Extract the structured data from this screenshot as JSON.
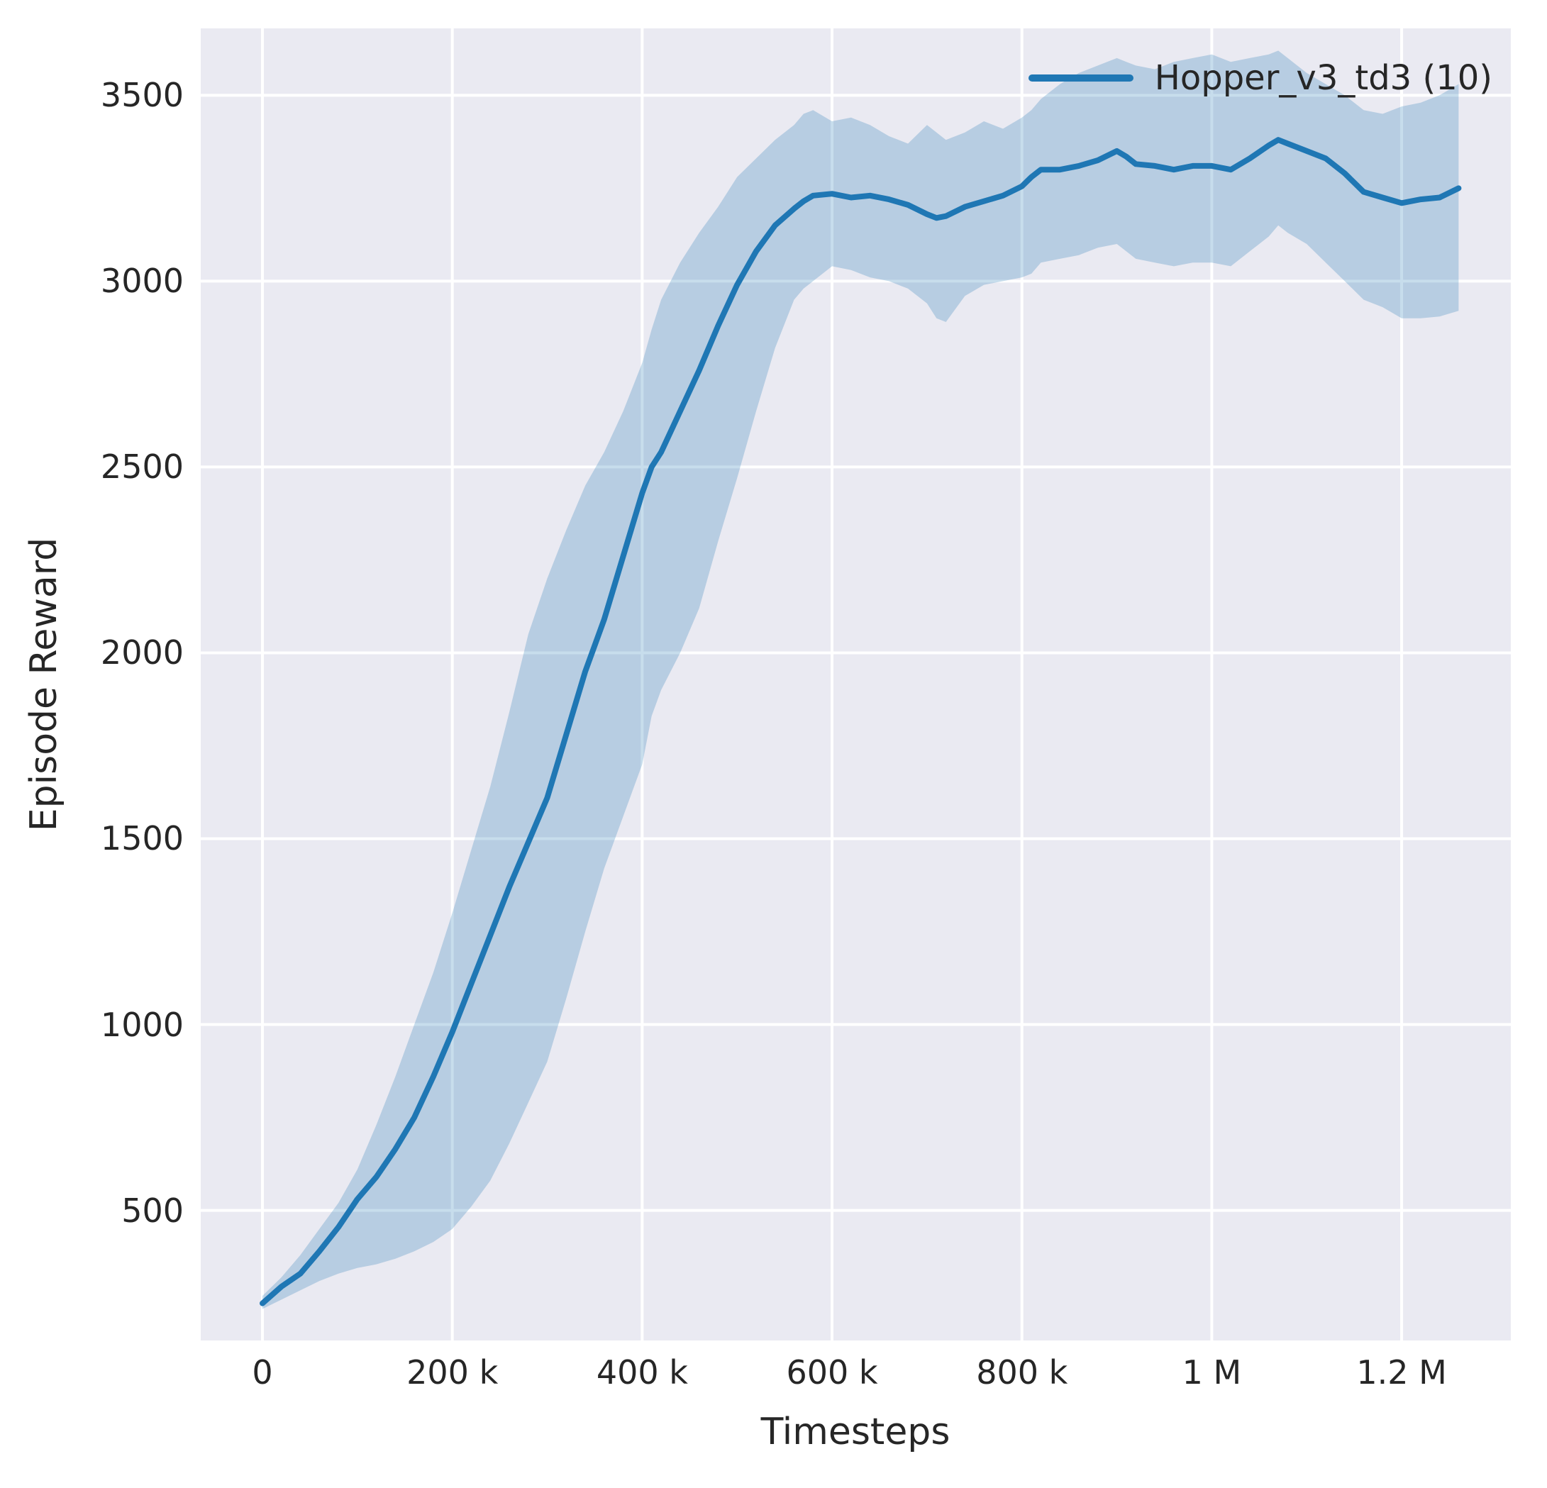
{
  "chart_data": {
    "type": "line",
    "title": "",
    "xlabel": "Timesteps",
    "ylabel": "Episode Reward",
    "grid": true,
    "legend": {
      "position": "upper right",
      "entries": [
        "Hopper_v3_td3 (10)"
      ]
    },
    "xlim": [
      -65000,
      1315000
    ],
    "ylim": [
      150,
      3680
    ],
    "xticks": {
      "values": [
        0,
        200000,
        400000,
        600000,
        800000,
        1000000,
        1200000
      ],
      "labels": [
        "0",
        "200 k",
        "400 k",
        "600 k",
        "800 k",
        "1 M",
        "1.2 M"
      ]
    },
    "yticks": {
      "values": [
        500,
        1000,
        1500,
        2000,
        2500,
        3000,
        3500
      ],
      "labels": [
        "500",
        "1000",
        "1500",
        "2000",
        "2500",
        "3000",
        "3500"
      ]
    },
    "x": [
      0,
      20000,
      40000,
      60000,
      80000,
      100000,
      120000,
      140000,
      160000,
      180000,
      200000,
      220000,
      240000,
      260000,
      280000,
      300000,
      320000,
      340000,
      360000,
      380000,
      400000,
      410000,
      420000,
      440000,
      460000,
      480000,
      500000,
      520000,
      540000,
      560000,
      570000,
      580000,
      600000,
      620000,
      640000,
      660000,
      680000,
      700000,
      710000,
      720000,
      740000,
      760000,
      780000,
      800000,
      810000,
      820000,
      840000,
      860000,
      880000,
      900000,
      910000,
      920000,
      940000,
      960000,
      980000,
      1000000,
      1020000,
      1040000,
      1060000,
      1070000,
      1080000,
      1100000,
      1120000,
      1140000,
      1160000,
      1180000,
      1200000,
      1220000,
      1240000,
      1260000
    ],
    "series": [
      {
        "name": "Hopper_v3_td3 (10)",
        "mean": [
          250,
          295,
          330,
          390,
          455,
          530,
          590,
          665,
          750,
          860,
          980,
          1110,
          1240,
          1370,
          1490,
          1610,
          1780,
          1950,
          2090,
          2260,
          2430,
          2500,
          2540,
          2650,
          2760,
          2880,
          2990,
          3080,
          3150,
          3195,
          3215,
          3230,
          3235,
          3225,
          3230,
          3220,
          3205,
          3180,
          3170,
          3175,
          3200,
          3215,
          3230,
          3255,
          3280,
          3300,
          3300,
          3310,
          3325,
          3350,
          3335,
          3315,
          3310,
          3300,
          3310,
          3310,
          3300,
          3330,
          3365,
          3380,
          3370,
          3350,
          3330,
          3290,
          3240,
          3225,
          3210,
          3220,
          3225,
          3250
        ],
        "band_lower": [
          235,
          260,
          285,
          310,
          330,
          345,
          355,
          370,
          390,
          415,
          450,
          510,
          580,
          680,
          790,
          900,
          1070,
          1250,
          1420,
          1560,
          1700,
          1830,
          1900,
          2000,
          2120,
          2300,
          2470,
          2650,
          2820,
          2950,
          2980,
          3000,
          3040,
          3030,
          3010,
          3000,
          2980,
          2940,
          2900,
          2890,
          2960,
          2990,
          3000,
          3010,
          3020,
          3050,
          3060,
          3070,
          3090,
          3100,
          3080,
          3060,
          3050,
          3040,
          3050,
          3050,
          3040,
          3080,
          3120,
          3150,
          3130,
          3100,
          3050,
          3000,
          2950,
          2930,
          2900,
          2900,
          2905,
          2920
        ],
        "band_upper": [
          270,
          320,
          380,
          450,
          520,
          610,
          730,
          860,
          1000,
          1140,
          1300,
          1470,
          1640,
          1840,
          2050,
          2200,
          2330,
          2450,
          2540,
          2650,
          2780,
          2870,
          2950,
          3050,
          3130,
          3200,
          3280,
          3330,
          3380,
          3420,
          3450,
          3460,
          3430,
          3440,
          3420,
          3390,
          3370,
          3420,
          3400,
          3380,
          3400,
          3430,
          3410,
          3440,
          3460,
          3490,
          3530,
          3560,
          3580,
          3600,
          3590,
          3580,
          3570,
          3590,
          3600,
          3610,
          3590,
          3600,
          3610,
          3620,
          3600,
          3560,
          3530,
          3500,
          3460,
          3450,
          3470,
          3480,
          3500,
          3530
        ]
      }
    ],
    "style": {
      "figure_background": "#ffffff",
      "axes_background": "#eaeaf2",
      "grid_color": "#ffffff",
      "line_color": "#1f77b4",
      "band_color": "#1f77b4",
      "band_opacity": 0.25,
      "text_color": "#262626"
    }
  }
}
